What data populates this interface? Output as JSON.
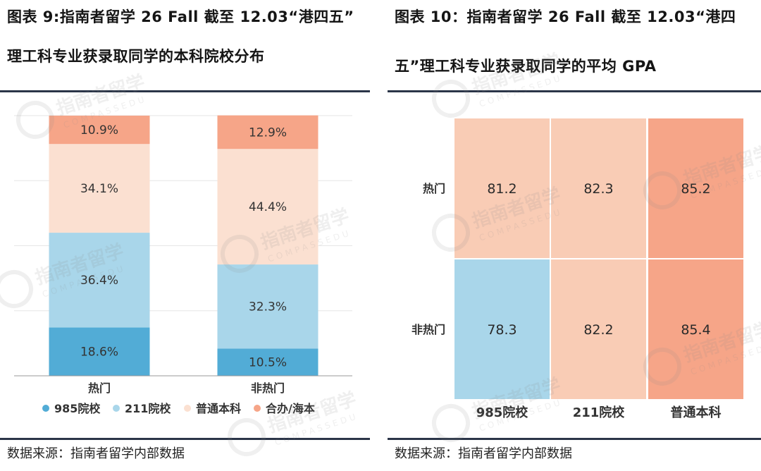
{
  "colors": {
    "c985": "#52acd6",
    "c211": "#a9d6ea",
    "cputong": "#fbe0d1",
    "chezuo": "#f6a588",
    "heat_high": "#f6a588",
    "heat_mid": "#f9ccb5",
    "heat_low": "#a9d6ea",
    "rule": "#2b3548"
  },
  "left": {
    "title_line1": "图表 9:指南者留学 26 Fall 截至 12.03“港四五”",
    "title_line2": "理工科专业获录取同学的本科院校分布",
    "source": "数据来源：指南者留学内部数据"
  },
  "right": {
    "title_line1": "图表 10：指南者留学 26 Fall 截至 12.03“港四",
    "title_line2": "五”理工科专业获录取同学的平均 GPA",
    "source": "数据来源：指南者留学内部数据"
  },
  "watermark": {
    "cn": "指南者留学",
    "en": "COMPASSEDU"
  },
  "chart_data": [
    {
      "type": "bar",
      "stacked": true,
      "categories": [
        "热门",
        "非热门"
      ],
      "series": [
        {
          "name": "985院校",
          "values": [
            18.6,
            10.5
          ],
          "labels": [
            "18.6%",
            "10.5%"
          ]
        },
        {
          "name": "211院校",
          "values": [
            36.4,
            32.3
          ],
          "labels": [
            "36.4%",
            "32.3%"
          ]
        },
        {
          "name": "普通本科",
          "values": [
            34.1,
            44.4
          ],
          "labels": [
            "34.1%",
            "44.4%"
          ]
        },
        {
          "name": "合办/海本",
          "values": [
            10.9,
            12.9
          ],
          "labels": [
            "10.9%",
            "12.9%"
          ]
        }
      ],
      "ylim": [
        0,
        100
      ],
      "grid": true,
      "legend": "bottom"
    },
    {
      "type": "heatmap",
      "rows": [
        "热门",
        "非热门"
      ],
      "columns": [
        "985院校",
        "211院校",
        "普通本科"
      ],
      "values": [
        [
          81.2,
          82.3,
          85.2
        ],
        [
          78.3,
          82.2,
          85.4
        ]
      ],
      "labels": [
        [
          "81.2",
          "82.3",
          "85.2"
        ],
        [
          "78.3",
          "82.2",
          "85.4"
        ]
      ]
    }
  ]
}
